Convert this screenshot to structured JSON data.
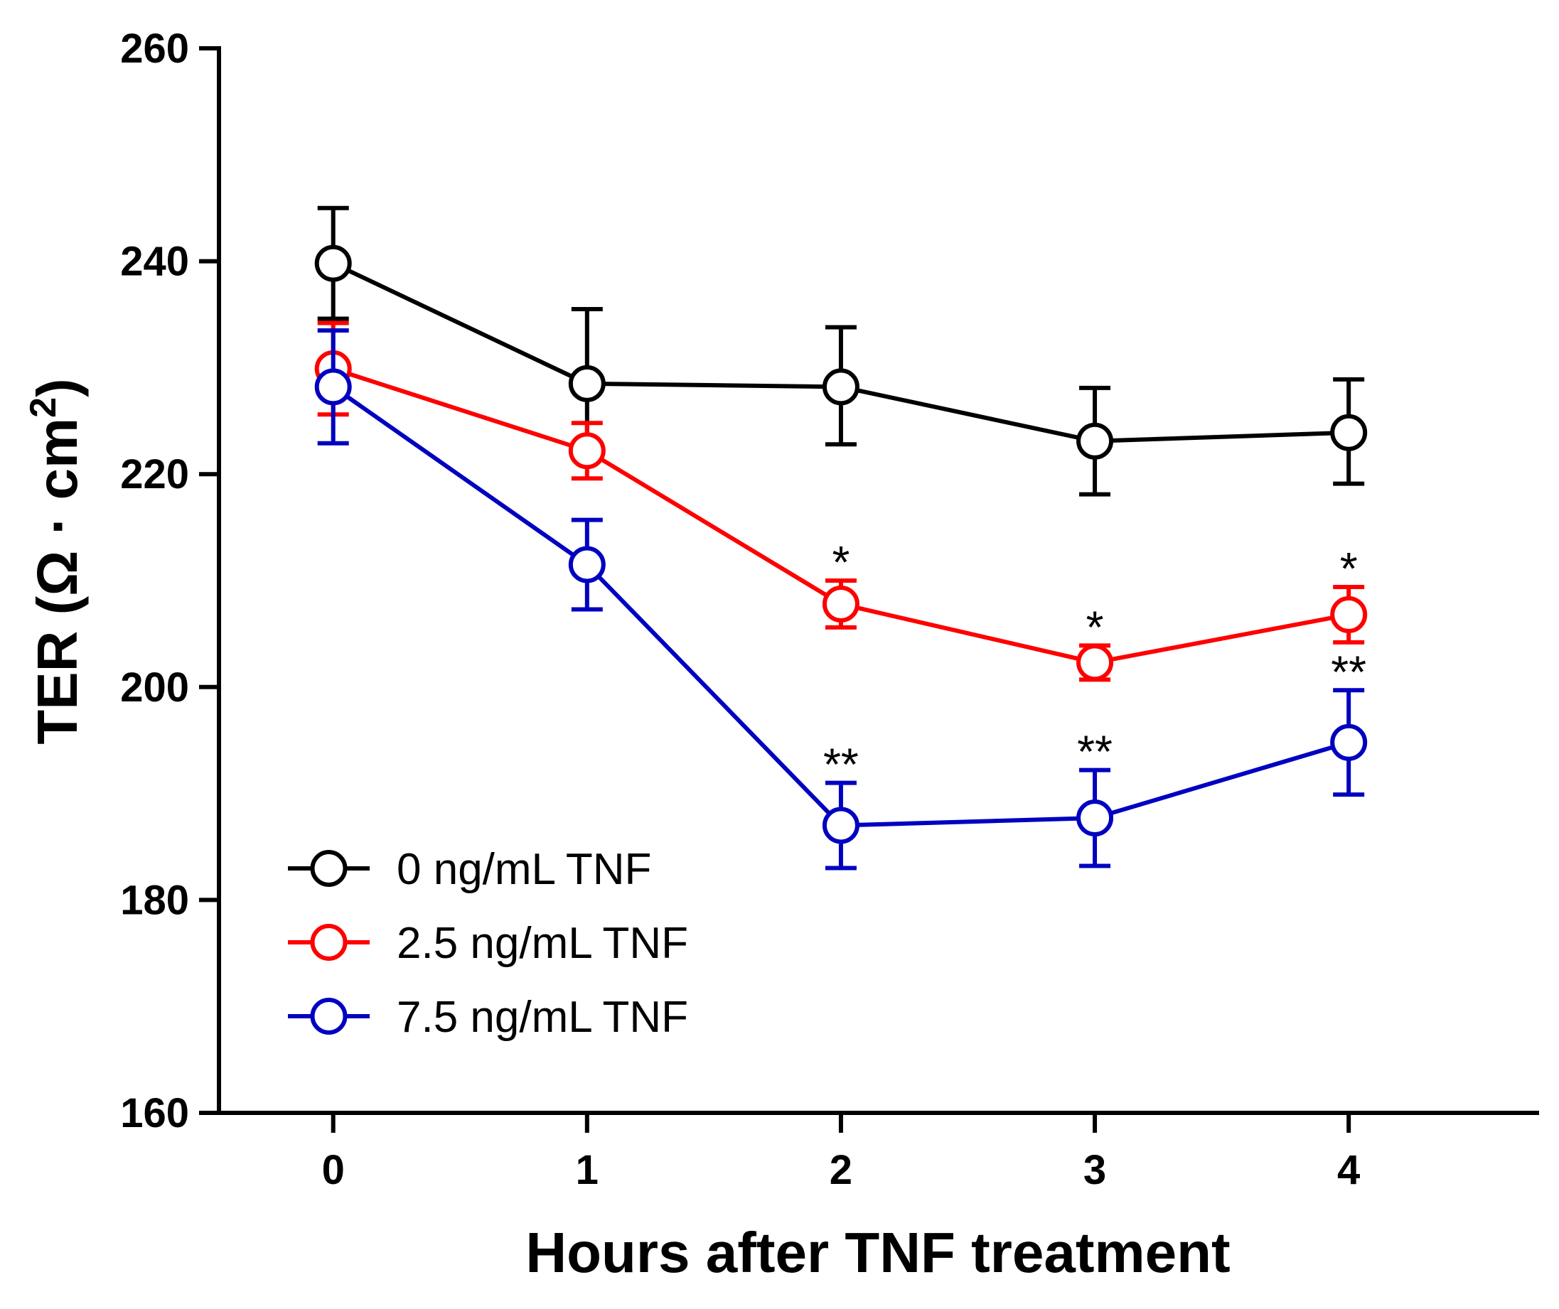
{
  "chart_data": {
    "type": "line",
    "xlabel": "Hours after TNF treatment",
    "ylabel_main": "TER (Ω · cm",
    "ylabel_sup": "2",
    "ylabel_close": ")",
    "x": [
      0,
      1,
      2,
      3,
      4
    ],
    "x_tick_labels": [
      "0",
      "1",
      "2",
      "3",
      "4"
    ],
    "xlim": [
      -0.45,
      4.75
    ],
    "ylim": [
      160,
      260
    ],
    "y_ticks": [
      160,
      180,
      200,
      220,
      240,
      260
    ],
    "y_tick_labels": [
      "160",
      "180",
      "200",
      "220",
      "240",
      "260"
    ],
    "grid": false,
    "legend_position": "bottom-left",
    "series": [
      {
        "name": "0 ng/mL TNF",
        "color": "#000000",
        "values": [
          239.8,
          228.5,
          228.2,
          223.1,
          223.9
        ],
        "err_upper": [
          5.2,
          7.0,
          5.6,
          5.0,
          5.0
        ],
        "err_lower": [
          5.2,
          6.0,
          5.4,
          5.0,
          4.8
        ],
        "significance": [
          "",
          "",
          "",
          "",
          ""
        ]
      },
      {
        "name": "2.5 ng/mL TNF",
        "color": "#ff0000",
        "values": [
          229.9,
          222.2,
          207.8,
          202.3,
          206.8
        ],
        "err_upper": [
          4.3,
          2.6,
          2.2,
          1.6,
          2.6
        ],
        "err_lower": [
          4.3,
          2.6,
          2.2,
          1.6,
          2.6
        ],
        "significance": [
          "",
          "",
          "*",
          "*",
          "*"
        ]
      },
      {
        "name": "7.5 ng/mL TNF",
        "color": "#0000c0",
        "values": [
          228.2,
          211.5,
          187.0,
          187.7,
          194.8
        ],
        "err_upper": [
          5.3,
          4.2,
          4.0,
          4.5,
          4.9
        ],
        "err_lower": [
          5.3,
          4.2,
          4.0,
          4.5,
          4.9
        ],
        "significance": [
          "",
          "",
          "**",
          "**",
          "**"
        ]
      }
    ]
  }
}
